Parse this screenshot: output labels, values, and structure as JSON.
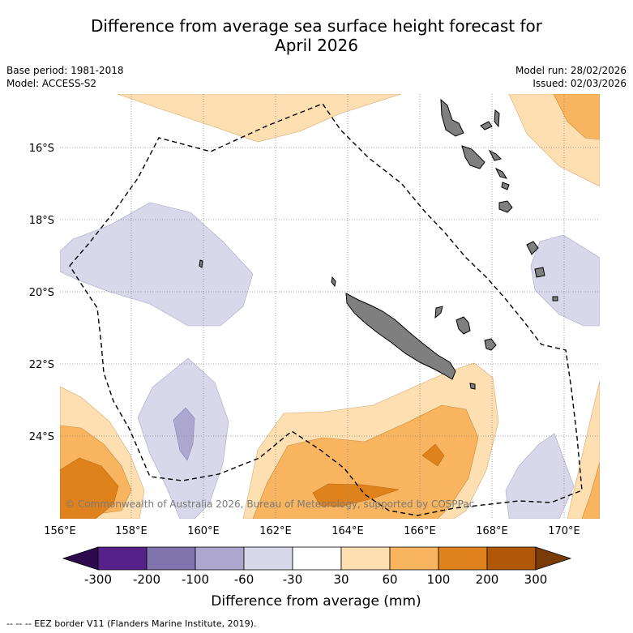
{
  "header": {
    "title_line1": "Difference from average sea surface height forecast for",
    "title_line2": "April 2026",
    "base_period": "Base period: 1981-2018",
    "model": "Model: ACCESS-S2",
    "model_run": "Model run: 28/02/2026",
    "issued": "Issued: 02/03/2026"
  },
  "map": {
    "lon_ticks": [
      "156°E",
      "158°E",
      "160°E",
      "162°E",
      "164°E",
      "166°E",
      "168°E",
      "170°E"
    ],
    "lat_ticks": [
      "16°S",
      "18°S",
      "20°S",
      "22°S",
      "24°S"
    ],
    "copyright": "© Commonwealth of Australia 2026, Bureau of Meteorology, supported by COSPPac"
  },
  "colorbar": {
    "label": "Difference from average (mm)",
    "ticks": [
      "-300",
      "-200",
      "-100",
      "-60",
      "-30",
      "30",
      "60",
      "100",
      "200",
      "300"
    ],
    "colors": [
      "#2d0a4e",
      "#57218a",
      "#8073ae",
      "#ada7cf",
      "#d9d8ea",
      "#ffffff",
      "#fddfb2",
      "#f8b45e",
      "#e0821b",
      "#b05708",
      "#7a3c06"
    ]
  },
  "legend": {
    "eez_line": "--  --  -- EEZ border V11 (Flanders Marine Institute, 2019)."
  }
}
